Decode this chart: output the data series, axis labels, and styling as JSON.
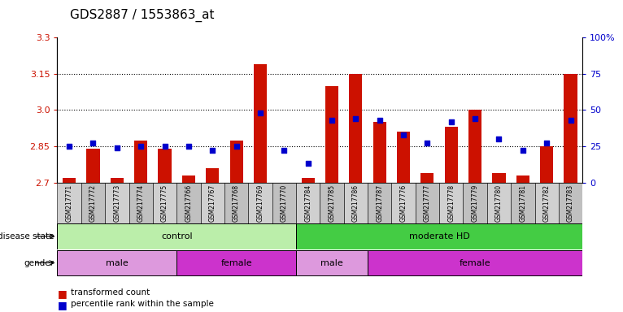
{
  "title": "GDS2887 / 1553863_at",
  "samples": [
    "GSM217771",
    "GSM217772",
    "GSM217773",
    "GSM217774",
    "GSM217775",
    "GSM217766",
    "GSM217767",
    "GSM217768",
    "GSM217769",
    "GSM217770",
    "GSM217784",
    "GSM217785",
    "GSM217786",
    "GSM217787",
    "GSM217776",
    "GSM217777",
    "GSM217778",
    "GSM217779",
    "GSM217780",
    "GSM217781",
    "GSM217782",
    "GSM217783"
  ],
  "bar_values": [
    2.72,
    2.84,
    2.72,
    2.875,
    2.84,
    2.73,
    2.76,
    2.875,
    3.19,
    2.7,
    2.72,
    3.1,
    3.15,
    2.95,
    2.91,
    2.74,
    2.93,
    3.0,
    2.74,
    2.73,
    2.85,
    3.15
  ],
  "percentile_values": [
    25,
    27,
    24,
    25,
    25,
    25,
    22,
    25,
    48,
    22,
    13,
    43,
    44,
    43,
    33,
    27,
    42,
    44,
    30,
    22,
    27,
    43
  ],
  "ylim_left": [
    2.7,
    3.3
  ],
  "ylim_right": [
    0,
    100
  ],
  "yticks_left": [
    2.7,
    2.85,
    3.0,
    3.15,
    3.3
  ],
  "yticks_right": [
    0,
    25,
    50,
    75,
    100
  ],
  "ytick_right_labels": [
    "0",
    "25",
    "50",
    "75",
    "100%"
  ],
  "dotted_lines": [
    2.85,
    3.0,
    3.15
  ],
  "bar_color": "#cc1100",
  "percentile_color": "#0000cc",
  "disease_state_groups": [
    {
      "label": "control",
      "start": 0,
      "end": 10,
      "color": "#bbeeaa"
    },
    {
      "label": "moderate HD",
      "start": 10,
      "end": 22,
      "color": "#44cc44"
    }
  ],
  "gender_groups": [
    {
      "label": "male",
      "start": 0,
      "end": 5,
      "color": "#dd99dd"
    },
    {
      "label": "female",
      "start": 5,
      "end": 10,
      "color": "#cc33cc"
    },
    {
      "label": "male",
      "start": 10,
      "end": 13,
      "color": "#dd99dd"
    },
    {
      "label": "female",
      "start": 13,
      "end": 22,
      "color": "#cc33cc"
    }
  ],
  "sample_box_colors": [
    "#d0d0d0",
    "#c0c0c0"
  ],
  "bar_width": 0.55,
  "background_color": "#ffffff",
  "plot_bg_color": "#ffffff"
}
